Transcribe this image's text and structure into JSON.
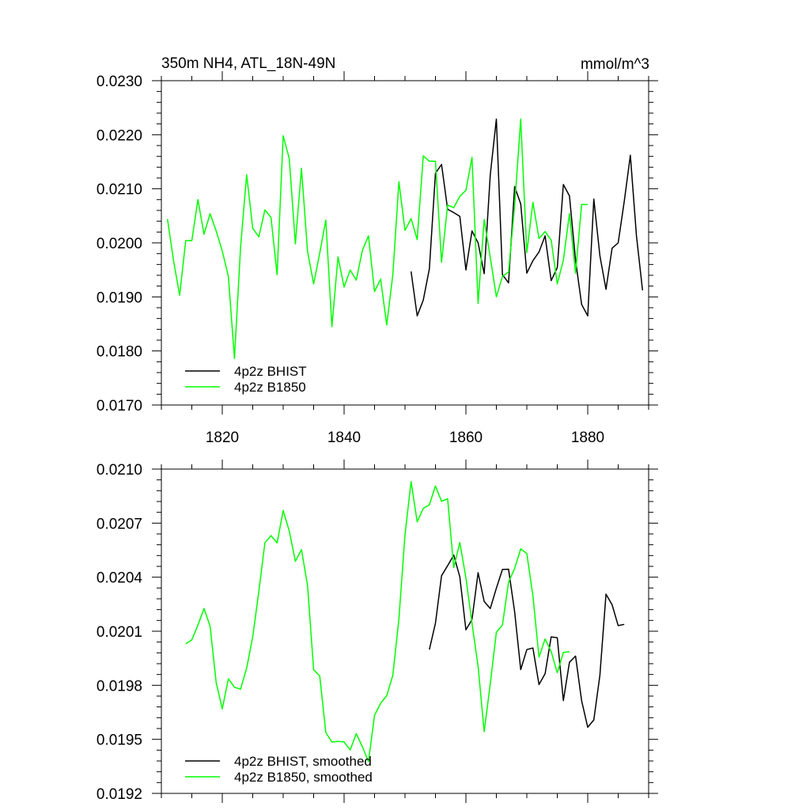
{
  "chart_data": [
    {
      "type": "line",
      "title": "350m NH4, ATL_18N-49N",
      "units": "mmol/m^3",
      "xlim": [
        1810,
        1890
      ],
      "ylim": [
        0.017,
        0.023
      ],
      "x_ticks": [
        1820,
        1840,
        1860,
        1880
      ],
      "x_tick_labels": [
        "1820",
        "1840",
        "1860",
        "1880"
      ],
      "y_ticks": [
        0.017,
        0.018,
        0.019,
        0.02,
        0.021,
        0.022,
        0.023
      ],
      "y_tick_labels": [
        "0.0170",
        "0.0180",
        "0.0190",
        "0.0200",
        "0.0210",
        "0.0220",
        "0.0230"
      ],
      "legend": [
        "4p2z BHIST",
        "4p2z B1850"
      ],
      "legend_placement": "bottom-left",
      "grid": false,
      "series": [
        {
          "name": "4p2z BHIST",
          "color": "#000000",
          "x": [
            1851,
            1852,
            1853,
            1854,
            1855,
            1856,
            1857,
            1858,
            1859,
            1860,
            1861,
            1862,
            1863,
            1864,
            1865,
            1866,
            1867,
            1868,
            1869,
            1870,
            1871,
            1872,
            1873,
            1874,
            1875,
            1876,
            1877,
            1878,
            1879,
            1880,
            1881,
            1882,
            1883,
            1884,
            1885,
            1886,
            1887,
            1888,
            1889
          ],
          "y": [
            0.01947,
            0.01865,
            0.01894,
            0.01952,
            0.02129,
            0.02145,
            0.02062,
            0.02056,
            0.02049,
            0.0195,
            0.02022,
            0.02,
            0.01943,
            0.02126,
            0.02229,
            0.01941,
            0.01926,
            0.02104,
            0.02072,
            0.01944,
            0.01967,
            0.01983,
            0.02013,
            0.0193,
            0.01954,
            0.02108,
            0.02087,
            0.01968,
            0.01886,
            0.01865,
            0.02081,
            0.01976,
            0.01914,
            0.0199,
            0.02,
            0.02077,
            0.02162,
            0.02013,
            0.01912
          ]
        },
        {
          "name": "4p2z B1850",
          "color": "#00ff00",
          "x": [
            1811,
            1812,
            1813,
            1814,
            1815,
            1816,
            1817,
            1818,
            1819,
            1820,
            1821,
            1822,
            1823,
            1824,
            1825,
            1826,
            1827,
            1828,
            1829,
            1830,
            1831,
            1832,
            1833,
            1834,
            1835,
            1836,
            1837,
            1838,
            1839,
            1840,
            1841,
            1842,
            1843,
            1844,
            1845,
            1846,
            1847,
            1848,
            1849,
            1850,
            1851,
            1852,
            1853,
            1854,
            1855,
            1856,
            1857,
            1858,
            1859,
            1860,
            1861,
            1862,
            1863,
            1864,
            1865,
            1866,
            1867,
            1868,
            1869,
            1870,
            1871,
            1872,
            1873,
            1874,
            1875,
            1876,
            1877,
            1878,
            1879,
            1880
          ],
          "y": [
            0.02044,
            0.01967,
            0.01903,
            0.02004,
            0.02004,
            0.0208,
            0.02016,
            0.02054,
            0.02022,
            0.01985,
            0.01938,
            0.01786,
            0.01991,
            0.02126,
            0.02027,
            0.02011,
            0.02061,
            0.02047,
            0.01941,
            0.02198,
            0.02156,
            0.01998,
            0.02138,
            0.01984,
            0.01924,
            0.01981,
            0.02042,
            0.01845,
            0.01974,
            0.01918,
            0.0195,
            0.01931,
            0.01986,
            0.02013,
            0.0191,
            0.01933,
            0.01848,
            0.01941,
            0.02113,
            0.02023,
            0.02045,
            0.02006,
            0.02161,
            0.02151,
            0.02151,
            0.01964,
            0.0207,
            0.02065,
            0.02086,
            0.02097,
            0.02158,
            0.01888,
            0.02043,
            0.01973,
            0.019,
            0.01938,
            0.01946,
            0.02069,
            0.02229,
            0.01982,
            0.02075,
            0.02008,
            0.02021,
            0.02005,
            0.01924,
            0.01968,
            0.02054,
            0.01944,
            0.02071,
            0.02071
          ]
        }
      ]
    },
    {
      "type": "line",
      "xlim": [
        1810,
        1890
      ],
      "ylim": [
        0.0192,
        0.021
      ],
      "x_ticks": [
        1820,
        1840,
        1860,
        1880
      ],
      "x_tick_labels": [],
      "y_ticks": [
        0.0192,
        0.0195,
        0.0198,
        0.0201,
        0.0204,
        0.0207,
        0.021
      ],
      "y_tick_labels": [
        "0.0192",
        "0.0195",
        "0.0198",
        "0.0201",
        "0.0204",
        "0.0207",
        "0.0210"
      ],
      "legend": [
        "4p2z BHIST, smoothed",
        "4p2z B1850, smoothed"
      ],
      "legend_placement": "bottom-left",
      "grid": false,
      "series": [
        {
          "name": "4p2z BHIST, smoothed",
          "color": "#000000",
          "x": [
            1854,
            1855,
            1856,
            1857,
            1858,
            1859,
            1860,
            1861,
            1862,
            1863,
            1864,
            1865,
            1866,
            1867,
            1868,
            1869,
            1870,
            1871,
            1872,
            1873,
            1874,
            1875,
            1876,
            1877,
            1878,
            1879,
            1880,
            1881,
            1882,
            1883,
            1884,
            1885,
            1886
          ],
          "y": [
            0.019998,
            0.020145,
            0.020408,
            0.020464,
            0.020523,
            0.020402,
            0.020108,
            0.020165,
            0.020425,
            0.020265,
            0.020226,
            0.020339,
            0.020443,
            0.020444,
            0.020208,
            0.019887,
            0.019998,
            0.020007,
            0.019804,
            0.019864,
            0.020069,
            0.020064,
            0.019715,
            0.019928,
            0.019962,
            0.019714,
            0.019567,
            0.019608,
            0.019856,
            0.020306,
            0.020247,
            0.020131,
            0.020138
          ]
        },
        {
          "name": "4p2z B1850, smoothed",
          "color": "#00ff00",
          "x": [
            1814,
            1815,
            1816,
            1817,
            1818,
            1819,
            1820,
            1821,
            1822,
            1823,
            1824,
            1825,
            1826,
            1827,
            1828,
            1829,
            1830,
            1831,
            1832,
            1833,
            1834,
            1835,
            1836,
            1837,
            1838,
            1839,
            1840,
            1841,
            1842,
            1843,
            1844,
            1845,
            1846,
            1847,
            1848,
            1849,
            1850,
            1851,
            1852,
            1853,
            1854,
            1855,
            1856,
            1857,
            1858,
            1859,
            1860,
            1861,
            1862,
            1863,
            1864,
            1865,
            1866,
            1867,
            1868,
            1869,
            1870,
            1871,
            1872,
            1873,
            1874,
            1875,
            1876,
            1877
          ],
          "y": [
            0.02003,
            0.020052,
            0.020134,
            0.020226,
            0.020128,
            0.019815,
            0.019669,
            0.019836,
            0.019789,
            0.019778,
            0.019895,
            0.020069,
            0.020321,
            0.020591,
            0.020631,
            0.02059,
            0.02077,
            0.020656,
            0.020488,
            0.020553,
            0.020354,
            0.019886,
            0.019852,
            0.019538,
            0.019485,
            0.019489,
            0.019486,
            0.019441,
            0.019532,
            0.019459,
            0.019376,
            0.019634,
            0.0197,
            0.019742,
            0.019855,
            0.020168,
            0.020636,
            0.02093,
            0.020707,
            0.020782,
            0.020802,
            0.020906,
            0.020821,
            0.020835,
            0.020453,
            0.020592,
            0.020397,
            0.020144,
            0.019906,
            0.019543,
            0.019809,
            0.020094,
            0.020135,
            0.020372,
            0.020448,
            0.020557,
            0.020531,
            0.020297,
            0.019956,
            0.020057,
            0.019987,
            0.01987,
            0.019982,
            0.019987
          ]
        }
      ]
    }
  ]
}
